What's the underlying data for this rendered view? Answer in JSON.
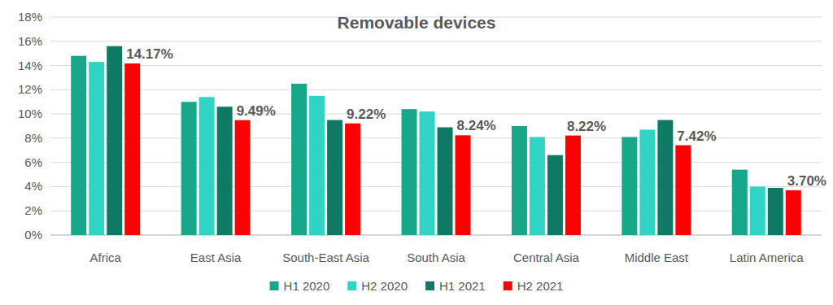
{
  "chart_data": {
    "type": "bar",
    "title": "Removable devices",
    "categories": [
      "Africa",
      "East Asia",
      "South-East Asia",
      "South Asia",
      "Central Asia",
      "Middle East",
      "Latin America"
    ],
    "series": [
      {
        "name": "H1 2020",
        "color": "#17a78b",
        "values": [
          14.8,
          11.0,
          12.5,
          10.4,
          9.0,
          8.1,
          5.4
        ]
      },
      {
        "name": "H2 2020",
        "color": "#2fd4c4",
        "values": [
          14.3,
          11.4,
          11.5,
          10.2,
          8.1,
          8.7,
          4.0
        ]
      },
      {
        "name": "H1 2021",
        "color": "#0f7a64",
        "values": [
          15.6,
          10.6,
          9.5,
          8.9,
          6.6,
          9.5,
          3.9
        ]
      },
      {
        "name": "H2 2021",
        "color": "#ff0000",
        "values": [
          14.17,
          9.49,
          9.22,
          8.24,
          8.22,
          7.42,
          3.7
        ],
        "value_labels": [
          "14.17%",
          "9.49%",
          "9.22%",
          "8.24%",
          "8.22%",
          "7.42%",
          "3.70%"
        ],
        "data_labels": true
      }
    ],
    "ylim": [
      0,
      18
    ],
    "yticks": [
      {
        "value": 0,
        "label": "0%"
      },
      {
        "value": 2,
        "label": "2%"
      },
      {
        "value": 4,
        "label": "4%"
      },
      {
        "value": 6,
        "label": "6%"
      },
      {
        "value": 8,
        "label": "8%"
      },
      {
        "value": 10,
        "label": "10%"
      },
      {
        "value": 12,
        "label": "12%"
      },
      {
        "value": 14,
        "label": "14%"
      },
      {
        "value": 16,
        "label": "16%"
      },
      {
        "value": 18,
        "label": "18%"
      }
    ],
    "grid": true,
    "legend": "bottom"
  }
}
